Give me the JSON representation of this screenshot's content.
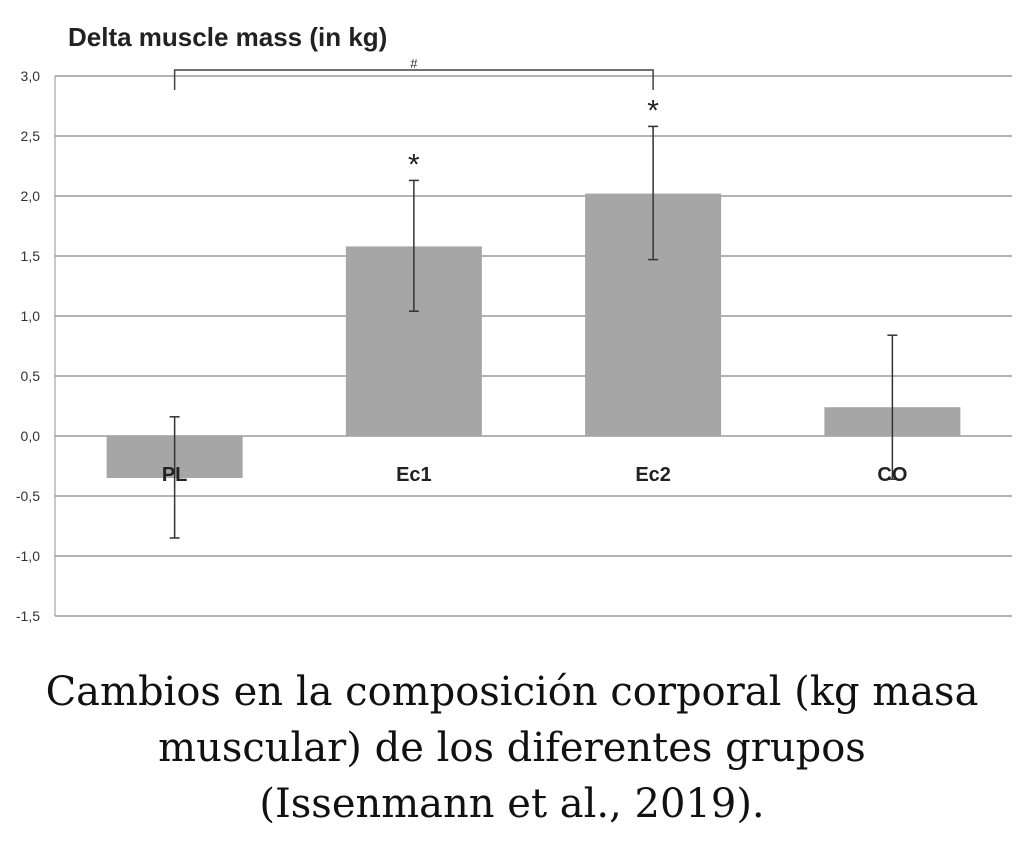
{
  "chart_data": {
    "type": "bar",
    "title": "Delta muscle mass (in kg)",
    "categories": [
      "PL",
      "Ec1",
      "Ec2",
      "CO"
    ],
    "values": [
      -0.35,
      1.58,
      2.02,
      0.24
    ],
    "error_upper": [
      0.16,
      2.13,
      2.58,
      0.84
    ],
    "error_lower": [
      -0.85,
      1.04,
      1.47,
      -0.36
    ],
    "significance": [
      "",
      "*",
      "*",
      ""
    ],
    "bracket": {
      "from": "PL",
      "to": "Ec2",
      "label": "#"
    },
    "y_ticks": [
      "3,0",
      "2,5",
      "2,0",
      "1,5",
      "1,0",
      "0,5",
      "0,0",
      "-0,5",
      "-1,0",
      "-1,5"
    ],
    "ylim": [
      -1.5,
      3.0
    ],
    "grid": true,
    "bar_color": "#a6a6a6"
  },
  "caption": {
    "lines": [
      "Cambios en la composición corporal (kg masa",
      "muscular) de los diferentes grupos",
      "(Issenmann et al., 2019)."
    ]
  }
}
